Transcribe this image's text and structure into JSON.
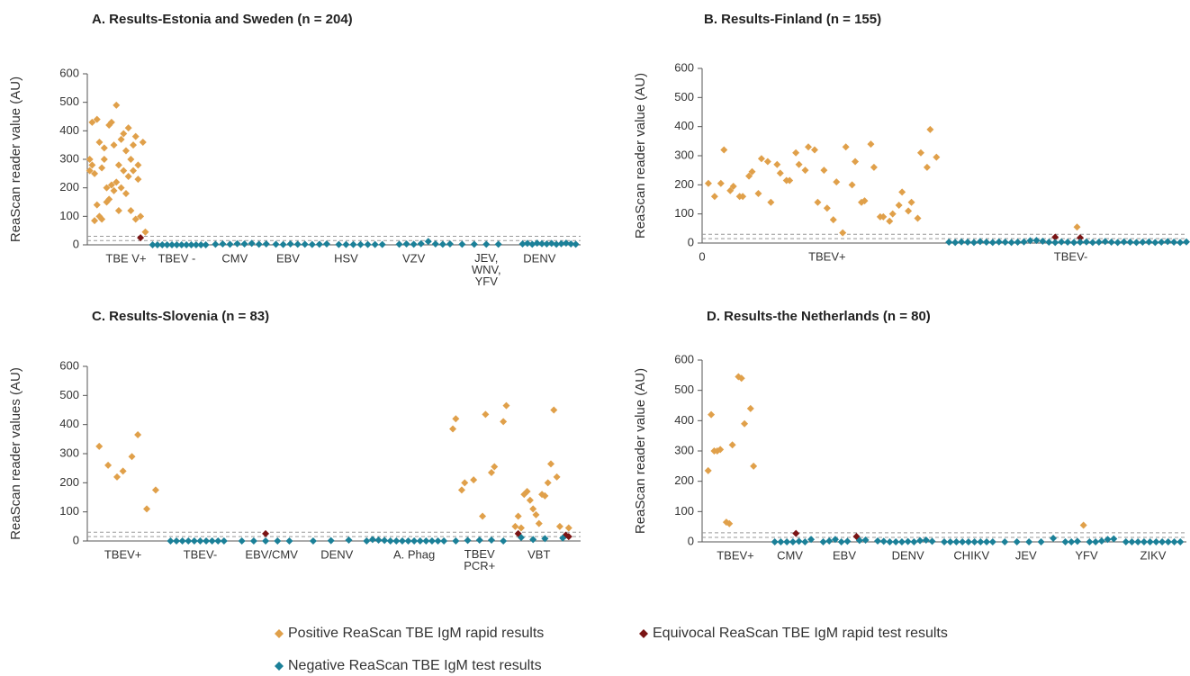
{
  "chart_data": [
    {
      "type": "scatter",
      "title": "A. Results-Estonia and Sweden (n = 204)",
      "y_label": "ReaScan reader value (AU)",
      "xlim": [
        0,
        204
      ],
      "ylim": [
        0,
        600
      ],
      "yticks": [
        0,
        100,
        200,
        300,
        400,
        500,
        600
      ],
      "cutoff_lines": [
        15,
        30
      ],
      "xticks": [
        {
          "value": 16,
          "label": "TBE V+"
        },
        {
          "value": 37,
          "label": "TBEV -"
        },
        {
          "value": 61,
          "label": "CMV"
        },
        {
          "value": 83,
          "label": "EBV"
        },
        {
          "value": 107,
          "label": "HSV"
        },
        {
          "value": 135,
          "label": "VZV"
        },
        {
          "value": 165,
          "label": "JEV,\nWNV,\nYFV"
        },
        {
          "value": 187,
          "label": "DENV"
        }
      ],
      "series": [
        {
          "name": "Positive ReaScan TBE IgM rapid results",
          "color": "#e0a04a",
          "x": [
            1,
            1,
            2,
            2,
            3,
            3,
            4,
            4,
            5,
            5,
            6,
            6,
            7,
            7,
            8,
            8,
            9,
            9,
            10,
            10,
            11,
            11,
            12,
            12,
            13,
            13,
            14,
            14,
            15,
            15,
            16,
            16,
            17,
            17,
            18,
            18,
            19,
            19,
            20,
            20,
            21,
            21,
            22,
            23,
            24
          ],
          "values": [
            260,
            300,
            280,
            430,
            85,
            250,
            440,
            140,
            100,
            360,
            90,
            270,
            300,
            340,
            200,
            150,
            420,
            160,
            210,
            430,
            190,
            350,
            220,
            490,
            280,
            120,
            370,
            200,
            260,
            390,
            330,
            180,
            410,
            240,
            300,
            120,
            350,
            260,
            380,
            90,
            230,
            280,
            100,
            360,
            45
          ]
        },
        {
          "name": "Equivocal ReaScan TBE IgM rapid test results",
          "color": "#7a1414",
          "x": [
            22
          ],
          "values": [
            25
          ]
        },
        {
          "name": "Negative ReaScan TBE IgM test results",
          "color": "#1b8098",
          "x": [
            27,
            29,
            31,
            33,
            35,
            37,
            39,
            41,
            43,
            45,
            47,
            49,
            53,
            56,
            59,
            62,
            65,
            68,
            71,
            74,
            78,
            81,
            84,
            87,
            90,
            93,
            96,
            99,
            104,
            107,
            110,
            113,
            116,
            119,
            122,
            129,
            132,
            135,
            138,
            141,
            144,
            147,
            150,
            155,
            160,
            165,
            170,
            180,
            182,
            184,
            186,
            188,
            190,
            192,
            194,
            196,
            198,
            200,
            202
          ],
          "values": [
            0,
            0,
            0,
            0,
            0,
            0,
            0,
            0,
            0,
            0,
            0,
            0,
            2,
            3,
            2,
            4,
            3,
            5,
            2,
            3,
            2,
            1,
            3,
            2,
            2,
            1,
            2,
            3,
            1,
            1,
            1,
            1,
            1,
            1,
            1,
            2,
            3,
            2,
            4,
            12,
            3,
            2,
            3,
            2,
            2,
            2,
            2,
            3,
            5,
            2,
            6,
            4,
            3,
            5,
            2,
            4,
            6,
            3,
            2
          ]
        }
      ]
    },
    {
      "type": "scatter",
      "title": "B. Results-Finland (n = 155)",
      "y_label": "ReaScan reader value (AU)",
      "xlim": [
        0,
        155
      ],
      "ylim": [
        0,
        600
      ],
      "yticks": [
        0,
        100,
        200,
        300,
        400,
        500,
        600
      ],
      "cutoff_lines": [
        15,
        30
      ],
      "xticks": [
        0,
        {
          "value": 40,
          "label": "TBEV+"
        },
        {
          "value": 118,
          "label": "TBEV-"
        }
      ],
      "series": [
        {
          "color": "#e0a04a",
          "x": [
            2,
            4,
            6,
            7,
            9,
            10,
            12,
            13,
            15,
            16,
            18,
            19,
            21,
            22,
            24,
            25,
            27,
            28,
            30,
            31,
            33,
            34,
            36,
            37,
            39,
            40,
            42,
            43,
            45,
            46,
            48,
            49,
            51,
            52,
            54,
            55,
            57,
            58,
            60,
            61,
            63,
            64,
            66,
            67,
            69,
            70,
            72,
            73,
            75,
            120
          ],
          "values": [
            205,
            160,
            205,
            320,
            180,
            195,
            160,
            160,
            230,
            245,
            170,
            290,
            280,
            140,
            270,
            240,
            215,
            215,
            310,
            270,
            250,
            330,
            320,
            140,
            250,
            120,
            80,
            210,
            35,
            330,
            200,
            280,
            140,
            145,
            340,
            260,
            90,
            90,
            75,
            100,
            130,
            175,
            110,
            140,
            85,
            310,
            260,
            390,
            295,
            55
          ]
        },
        {
          "color": "#7a1414",
          "x": [
            113,
            121
          ],
          "values": [
            20,
            18
          ]
        },
        {
          "color": "#1b8098",
          "x": [
            79,
            81,
            83,
            85,
            87,
            89,
            91,
            93,
            95,
            97,
            99,
            101,
            103,
            105,
            107,
            109,
            111,
            113,
            115,
            117,
            119,
            121,
            123,
            125,
            127,
            129,
            131,
            133,
            135,
            137,
            139,
            141,
            143,
            145,
            147,
            149,
            151,
            153,
            155
          ],
          "values": [
            3,
            2,
            4,
            3,
            2,
            5,
            3,
            2,
            4,
            3,
            2,
            3,
            4,
            8,
            9,
            6,
            3,
            2,
            4,
            3,
            2,
            3,
            4,
            2,
            3,
            5,
            3,
            2,
            4,
            3,
            2,
            3,
            4,
            2,
            3,
            5,
            3,
            2,
            4
          ]
        }
      ]
    },
    {
      "type": "scatter",
      "title": "C. Results-Slovenia (n = 83)",
      "y_label": "ReaScan reader values (AU)",
      "xlim": [
        0,
        83
      ],
      "ylim": [
        0,
        600
      ],
      "yticks": [
        0,
        100,
        200,
        300,
        400,
        500,
        600
      ],
      "cutoff_lines": [
        15,
        30
      ],
      "xticks": [
        {
          "value": 6,
          "label": "TBEV+"
        },
        {
          "value": 19,
          "label": "TBEV-"
        },
        {
          "value": 31,
          "label": "EBV/CMV"
        },
        {
          "value": 42,
          "label": "DENV"
        },
        {
          "value": 55,
          "label": "A. Phag"
        },
        {
          "value": 66,
          "label": "TBEV\nPCR+"
        },
        {
          "value": 76,
          "label": "VBT"
        }
      ],
      "series": [
        {
          "color": "#e0a04a",
          "x": [
            2,
            3.5,
            5,
            6,
            7.5,
            8.5,
            10,
            11.5,
            61.5,
            62,
            63,
            63.5,
            65,
            66.5,
            67,
            68,
            68.5,
            70,
            70.5,
            72,
            72.5,
            73,
            73.5,
            74,
            74.5,
            75,
            75.5,
            76,
            76.5,
            77,
            77.5,
            78,
            78.5,
            79,
            79.5,
            81
          ],
          "values": [
            325,
            260,
            220,
            240,
            290,
            365,
            110,
            175,
            385,
            420,
            175,
            200,
            210,
            85,
            435,
            235,
            255,
            410,
            465,
            50,
            85,
            45,
            160,
            170,
            140,
            110,
            90,
            60,
            160,
            155,
            200,
            265,
            450,
            220,
            50,
            45
          ]
        },
        {
          "color": "#7a1414",
          "x": [
            30,
            72.5,
            80.5,
            81
          ],
          "values": [
            25,
            25,
            20,
            15
          ]
        },
        {
          "color": "#1b8098",
          "x": [
            14,
            15,
            16,
            17,
            18,
            19,
            20,
            21,
            22,
            23,
            26,
            28,
            30,
            32,
            34,
            38,
            41,
            44,
            47,
            48,
            49,
            50,
            51,
            52,
            53,
            54,
            55,
            56,
            57,
            58,
            59,
            60,
            62,
            64,
            66,
            68,
            70,
            73,
            75,
            77,
            80
          ],
          "values": [
            0,
            0,
            0,
            0,
            0,
            0,
            0,
            0,
            0,
            0,
            0,
            0,
            0,
            0,
            0,
            0,
            1,
            3,
            0,
            5,
            3,
            2,
            0,
            0,
            0,
            0,
            0,
            0,
            0,
            0,
            0,
            0,
            0,
            2,
            3,
            3,
            0,
            12,
            5,
            8,
            10
          ]
        }
      ]
    },
    {
      "type": "scatter",
      "title": "D. Results-the Netherlands (n = 80)",
      "y_label": "ReaScan reader value (AU)",
      "xlim": [
        0,
        80
      ],
      "ylim": [
        0,
        600
      ],
      "yticks": [
        0,
        100,
        200,
        300,
        400,
        500,
        600
      ],
      "cutoff_lines": [
        15,
        30
      ],
      "xticks": [
        {
          "value": 5.5,
          "label": "TBEV+"
        },
        {
          "value": 14.5,
          "label": "CMV"
        },
        {
          "value": 23.5,
          "label": "EBV"
        },
        {
          "value": 34,
          "label": "DENV"
        },
        {
          "value": 44.5,
          "label": "CHIKV"
        },
        {
          "value": 53.5,
          "label": "JEV"
        },
        {
          "value": 63.5,
          "label": "YFV"
        },
        {
          "value": 74.5,
          "label": "ZIKV"
        }
      ],
      "series": [
        {
          "color": "#e0a04a",
          "x": [
            1,
            1.5,
            2,
            2.5,
            3,
            4,
            4.5,
            5,
            6,
            6.5,
            7,
            8,
            8.5,
            63
          ],
          "values": [
            235,
            420,
            300,
            300,
            305,
            65,
            60,
            320,
            545,
            540,
            390,
            440,
            250,
            55
          ]
        },
        {
          "color": "#7a1414",
          "x": [
            15.5,
            25.5
          ],
          "values": [
            28,
            18
          ]
        },
        {
          "color": "#1b8098",
          "x": [
            12,
            13,
            14,
            15,
            16,
            17,
            18,
            20,
            21,
            22,
            23,
            24,
            26,
            27,
            29,
            30,
            31,
            32,
            33,
            34,
            35,
            36,
            37,
            38,
            40,
            41,
            42,
            43,
            44,
            45,
            46,
            47,
            48,
            50,
            52,
            54,
            56,
            58,
            60,
            61,
            62,
            64,
            65,
            66,
            67,
            68,
            70,
            71,
            72,
            73,
            74,
            75,
            76,
            77,
            78,
            79
          ],
          "values": [
            0,
            0,
            0,
            0,
            2,
            0,
            8,
            0,
            3,
            8,
            0,
            2,
            5,
            6,
            3,
            2,
            0,
            0,
            0,
            1,
            0,
            4,
            6,
            2,
            0,
            0,
            0,
            0,
            0,
            0,
            0,
            0,
            0,
            0,
            0,
            0,
            0,
            12,
            0,
            0,
            2,
            0,
            0,
            3,
            8,
            10,
            0,
            0,
            0,
            0,
            0,
            0,
            0,
            0,
            0,
            0
          ]
        }
      ]
    }
  ]
}
